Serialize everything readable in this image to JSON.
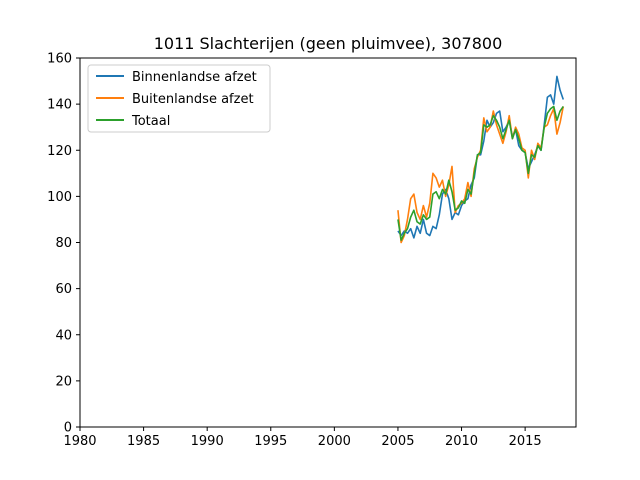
{
  "chart_data": {
    "type": "line",
    "title": "1011 Slachterijen (geen pluimvee), 307800",
    "xlabel": "",
    "ylabel": "",
    "xlim": [
      1980,
      2019
    ],
    "ylim": [
      0,
      160
    ],
    "xticks": [
      1980,
      1985,
      1990,
      1995,
      2000,
      2005,
      2010,
      2015
    ],
    "yticks": [
      0,
      20,
      40,
      60,
      80,
      100,
      120,
      140,
      160
    ],
    "grid": false,
    "legend_position": "upper left",
    "series": [
      {
        "name": "Binnenlandse afzet",
        "color": "#1f77b4",
        "x": [
          2005.0,
          2005.25,
          2005.5,
          2005.75,
          2006.0,
          2006.25,
          2006.5,
          2006.75,
          2007.0,
          2007.25,
          2007.5,
          2007.75,
          2008.0,
          2008.25,
          2008.5,
          2008.75,
          2009.0,
          2009.25,
          2009.5,
          2009.75,
          2010.0,
          2010.25,
          2010.5,
          2010.75,
          2011.0,
          2011.25,
          2011.5,
          2011.75,
          2012.0,
          2012.25,
          2012.5,
          2012.75,
          2013.0,
          2013.25,
          2013.5,
          2013.75,
          2014.0,
          2014.25,
          2014.5,
          2014.75,
          2015.0,
          2015.25,
          2015.5,
          2015.75,
          2016.0,
          2016.25,
          2016.5,
          2016.75,
          2017.0,
          2017.25,
          2017.5,
          2017.75,
          2018.0
        ],
        "y": [
          85,
          83,
          85,
          84,
          86,
          82,
          87,
          84,
          90,
          84,
          83,
          87,
          86,
          92,
          101,
          103,
          99,
          90,
          93,
          92,
          96,
          98,
          99,
          105,
          108,
          118,
          118,
          124,
          133,
          130,
          132,
          136,
          137,
          128,
          130,
          133,
          126,
          129,
          122,
          120,
          119,
          112,
          115,
          118,
          122,
          120,
          131,
          143,
          144,
          140,
          152,
          146,
          142
        ]
      },
      {
        "name": "Buitenlandse afzet",
        "color": "#ff7f0e",
        "x": [
          2005.0,
          2005.25,
          2005.5,
          2005.75,
          2006.0,
          2006.25,
          2006.5,
          2006.75,
          2007.0,
          2007.25,
          2007.5,
          2007.75,
          2008.0,
          2008.25,
          2008.5,
          2008.75,
          2009.0,
          2009.25,
          2009.5,
          2009.75,
          2010.0,
          2010.25,
          2010.5,
          2010.75,
          2011.0,
          2011.25,
          2011.5,
          2011.75,
          2012.0,
          2012.25,
          2012.5,
          2012.75,
          2013.0,
          2013.25,
          2013.5,
          2013.75,
          2014.0,
          2014.25,
          2014.5,
          2014.75,
          2015.0,
          2015.25,
          2015.5,
          2015.75,
          2016.0,
          2016.25,
          2016.5,
          2016.75,
          2017.0,
          2017.25,
          2017.5,
          2017.75,
          2018.0
        ],
        "y": [
          94,
          80,
          83,
          90,
          99,
          101,
          93,
          90,
          96,
          91,
          97,
          110,
          108,
          104,
          107,
          100,
          105,
          113,
          93,
          96,
          97,
          99,
          106,
          100,
          112,
          117,
          120,
          134,
          128,
          130,
          137,
          131,
          127,
          123,
          128,
          135,
          125,
          130,
          127,
          121,
          120,
          108,
          120,
          116,
          123,
          121,
          130,
          131,
          135,
          138,
          127,
          132,
          139
        ]
      },
      {
        "name": "Totaal",
        "color": "#2ca02c",
        "x": [
          2005.0,
          2005.25,
          2005.5,
          2005.75,
          2006.0,
          2006.25,
          2006.5,
          2006.75,
          2007.0,
          2007.25,
          2007.5,
          2007.75,
          2008.0,
          2008.25,
          2008.5,
          2008.75,
          2009.0,
          2009.25,
          2009.5,
          2009.75,
          2010.0,
          2010.25,
          2010.5,
          2010.75,
          2011.0,
          2011.25,
          2011.5,
          2011.75,
          2012.0,
          2012.25,
          2012.5,
          2012.75,
          2013.0,
          2013.25,
          2013.5,
          2013.75,
          2014.0,
          2014.25,
          2014.5,
          2014.75,
          2015.0,
          2015.25,
          2015.5,
          2015.75,
          2016.0,
          2016.25,
          2016.5,
          2016.75,
          2017.0,
          2017.25,
          2017.5,
          2017.75,
          2018.0
        ],
        "y": [
          90,
          81,
          84,
          86,
          91,
          94,
          89,
          88,
          92,
          90,
          91,
          101,
          102,
          99,
          103,
          101,
          107,
          102,
          94,
          95,
          98,
          97,
          103,
          101,
          110,
          118,
          119,
          131,
          130,
          131,
          135,
          133,
          130,
          125,
          129,
          133,
          125,
          129,
          125,
          120,
          119,
          110,
          118,
          117,
          122,
          120,
          130,
          136,
          138,
          139,
          133,
          137,
          139
        ]
      }
    ]
  }
}
